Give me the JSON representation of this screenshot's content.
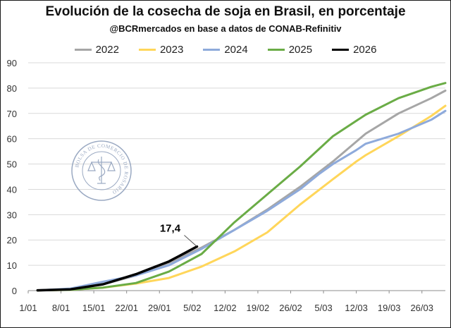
{
  "header": {
    "title": "Evolución de la cosecha de soja en Brasil, en porcentaje",
    "subtitle": "@BCRmercados en base a datos de CONAB-Refinitiv"
  },
  "watermark": {
    "text": "BOLSA DE COMERCIO DE ROSARIO",
    "color": "#9aa9c2"
  },
  "chart_data": {
    "type": "line",
    "title": "Evolución de la cosecha de soja en Brasil, en porcentaje",
    "subtitle": "@BCRmercados en base a datos de CONAB-Refinitiv",
    "xlabel": "",
    "ylabel": "",
    "x_ticks": [
      "1/01",
      "8/01",
      "15/01",
      "22/01",
      "29/01",
      "5/02",
      "12/02",
      "19/02",
      "26/02",
      "5/03",
      "12/03",
      "19/03",
      "26/03"
    ],
    "xlim_days": [
      0,
      89
    ],
    "ylim": [
      0,
      90
    ],
    "y_ticks": [
      0,
      10,
      20,
      30,
      40,
      50,
      60,
      70,
      80,
      90
    ],
    "grid": "horizontal",
    "legend_position": "top",
    "annotation": {
      "text": "17,4",
      "series": "2026",
      "x_day": 36,
      "y": 17.4
    },
    "series": [
      {
        "name": "2022",
        "color": "#a6a6a6",
        "x": [
          2,
          9,
          16,
          23,
          30,
          37,
          44,
          51,
          58,
          65,
          72,
          79,
          86,
          89
        ],
        "y": [
          0.1,
          0.6,
          2.5,
          6,
          11,
          17,
          24,
          32,
          41,
          51,
          62,
          70,
          76,
          79
        ]
      },
      {
        "name": "2023",
        "color": "#ffd65a",
        "x": [
          2,
          9,
          16,
          23,
          30,
          37,
          44,
          51,
          58,
          65,
          70,
          72,
          79,
          86,
          89
        ],
        "y": [
          0.1,
          0.3,
          1.2,
          2.8,
          5,
          9.5,
          15.5,
          23,
          34,
          44,
          51,
          53.5,
          61,
          69,
          73
        ]
      },
      {
        "name": "2024",
        "color": "#8eaadb",
        "x": [
          2,
          9,
          16,
          23,
          30,
          37,
          44,
          51,
          58,
          62,
          65,
          70,
          72,
          79,
          86,
          89
        ],
        "y": [
          0.1,
          0.8,
          3.5,
          6,
          10,
          16.5,
          24,
          31.5,
          40,
          46,
          50,
          55.5,
          58,
          62,
          67.5,
          71
        ]
      },
      {
        "name": "2025",
        "color": "#6aac46",
        "x": [
          2,
          9,
          16,
          23,
          30,
          37,
          44,
          51,
          58,
          65,
          72,
          79,
          86,
          89
        ],
        "y": [
          0.1,
          0.3,
          1.2,
          3,
          7.5,
          14.5,
          27,
          38,
          49,
          61,
          69.5,
          76,
          80.5,
          82
        ]
      },
      {
        "name": "2026",
        "color": "#000000",
        "x": [
          2,
          9,
          16,
          23,
          30,
          36
        ],
        "y": [
          0.1,
          0.5,
          2.5,
          6.5,
          11.5,
          17.4
        ]
      }
    ]
  }
}
